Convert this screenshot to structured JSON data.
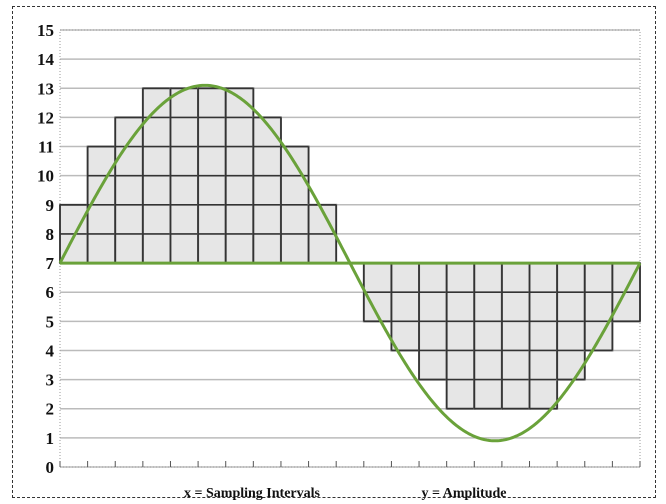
{
  "chart_data": {
    "type": "bar",
    "title": "",
    "xlabel": "x = Sampling Intervals",
    "ylabel": "y = Amplitude",
    "ylim": [
      0,
      15
    ],
    "y_ticks": [
      "0",
      "1",
      "2",
      "3",
      "4",
      "5",
      "6",
      "7",
      "8",
      "9",
      "10",
      "11",
      "12",
      "13",
      "14",
      "15"
    ],
    "baseline": 7,
    "x_intervals": 21,
    "grid": true,
    "samples": [
      9,
      11,
      12,
      13,
      13,
      13,
      13,
      12,
      11,
      9,
      7,
      5,
      4,
      3,
      2,
      2,
      2,
      2,
      3,
      4,
      5
    ],
    "curve": {
      "name": "",
      "color": "#6aa23a",
      "amplitude": 6.1,
      "offset": 7,
      "period_intervals": 21
    },
    "colors": {
      "bar_fill": "#e6e6e6",
      "bar_stroke": "#777777",
      "grid": "#bbbbbb",
      "cell_line": "#333333"
    }
  }
}
